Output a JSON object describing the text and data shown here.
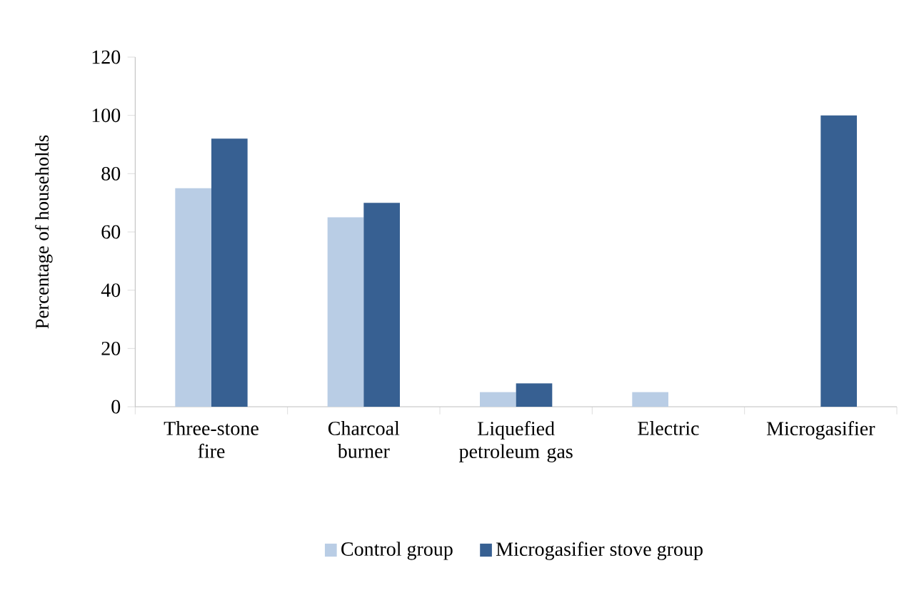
{
  "chart_data": {
    "type": "bar",
    "ylabel": "Percentage of households",
    "categories": [
      "Three-stone fire",
      "Charcoal burner",
      "Liquefied petroleum gas",
      "Electric",
      "Microgasifier"
    ],
    "series": [
      {
        "name": "Control group",
        "color": "#b9cde5",
        "values": [
          75,
          65,
          5,
          5,
          0
        ]
      },
      {
        "name": "Microgasifier stove group",
        "color": "#376092",
        "values": [
          92,
          70,
          8,
          0,
          100
        ]
      }
    ],
    "ylim": [
      0,
      120
    ],
    "yticks": [
      0,
      20,
      40,
      60,
      80,
      100,
      120
    ],
    "grid": false,
    "legend": "bottom"
  }
}
